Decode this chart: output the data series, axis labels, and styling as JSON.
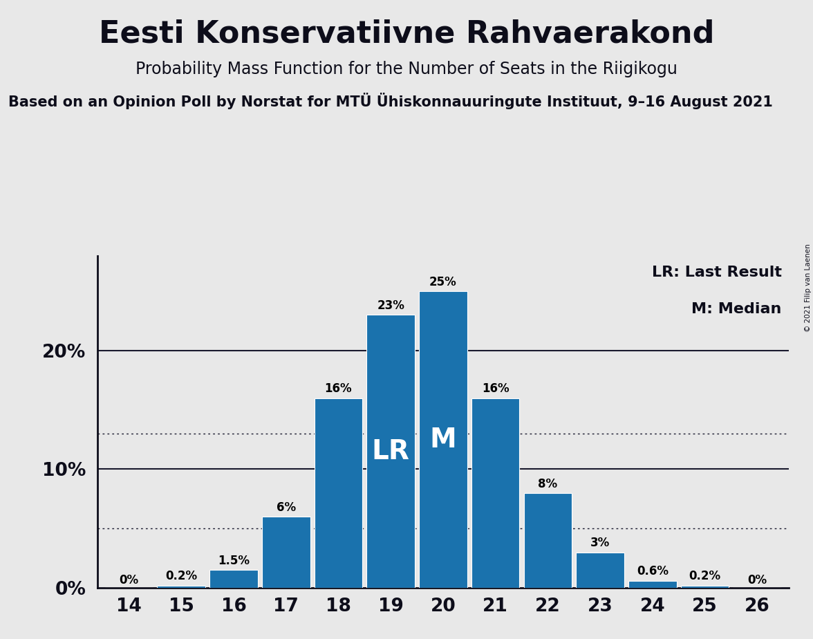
{
  "title": "Eesti Konservatiivne Rahvaerakond",
  "subtitle": "Probability Mass Function for the Number of Seats in the Riigikogu",
  "source_line": "Based on an Opinion Poll by Norstat for MTÜ Ühiskonnauuringute Instituut, 9–16 August 2021",
  "copyright": "© 2021 Filip van Laenen",
  "categories": [
    14,
    15,
    16,
    17,
    18,
    19,
    20,
    21,
    22,
    23,
    24,
    25,
    26
  ],
  "values": [
    0.0,
    0.2,
    1.5,
    6.0,
    16.0,
    23.0,
    25.0,
    16.0,
    8.0,
    3.0,
    0.6,
    0.2,
    0.0
  ],
  "labels": [
    "0%",
    "0.2%",
    "1.5%",
    "6%",
    "16%",
    "23%",
    "25%",
    "16%",
    "8%",
    "3%",
    "0.6%",
    "0.2%",
    "0%"
  ],
  "bar_color": "#1a72ad",
  "background_color": "#e8e8e8",
  "lr_bar": 19,
  "median_bar": 20,
  "dotted_lines": [
    5.0,
    13.0
  ],
  "solid_lines": [
    10.0,
    20.0
  ],
  "legend_lr": "LR: Last Result",
  "legend_m": "M: Median",
  "title_fontsize": 32,
  "subtitle_fontsize": 17,
  "source_fontsize": 15,
  "ylim": [
    0,
    28
  ],
  "yticks": [
    0,
    10,
    20
  ],
  "ytick_labels": [
    "0%",
    "10%",
    "20%"
  ]
}
